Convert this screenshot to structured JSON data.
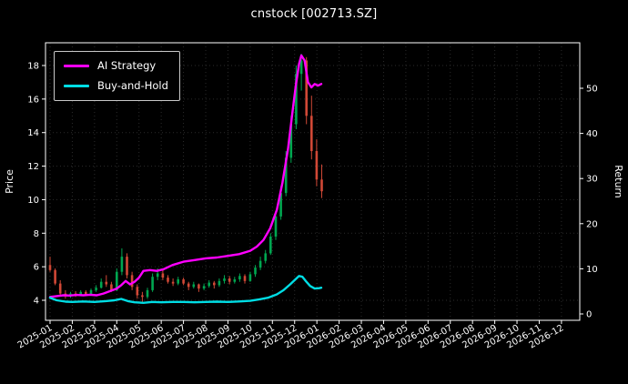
{
  "title": "cnstock [002713.SZ]",
  "colors": {
    "background": "#000000",
    "text": "#ffffff",
    "axis": "#ffffff",
    "grid": "#2b2b2b",
    "ai_strategy": "#ff00ff",
    "buy_and_hold": "#00dde4",
    "candle_up": "#00a650",
    "candle_down": "#d14836"
  },
  "legend": [
    {
      "label": "AI Strategy",
      "color": "#ff00ff"
    },
    {
      "label": "Buy-and-Hold",
      "color": "#00dde4"
    }
  ],
  "chart_data": {
    "type": "line",
    "title": "cnstock [002713.SZ]",
    "xlabel": "",
    "ylabel_left": "Price",
    "ylabel_right": "Return",
    "x_unit": "months since 2025-01",
    "left_ylim": [
      2.8,
      19.3
    ],
    "right_ylim": [
      -1.4,
      60
    ],
    "grid": "dotted",
    "legend_position": "upper-left",
    "left_ticks": [
      4,
      6,
      8,
      10,
      12,
      14,
      16,
      18
    ],
    "right_ticks": [
      0,
      10,
      20,
      30,
      40,
      50
    ],
    "x_tick_labels": [
      "2025-01",
      "2025-02",
      "2025-03",
      "2025-04",
      "2025-05",
      "2025-06",
      "2025-07",
      "2025-08",
      "2025-09",
      "2025-10",
      "2025-11",
      "2025-12",
      "2026-01",
      "2026-02",
      "2026-03",
      "2026-04",
      "2026-05",
      "2026-06",
      "2026-07",
      "2026-08",
      "2026-09",
      "2026-10",
      "2026-11",
      "2026-12"
    ],
    "series": [
      {
        "name": "AI Strategy",
        "axis": "left",
        "color": "#ff00ff",
        "x": [
          0,
          0.3,
          0.6,
          0.9,
          1.2,
          1.5,
          1.8,
          2.1,
          2.4,
          2.7,
          3.0,
          3.2,
          3.4,
          3.6,
          3.8,
          4.0,
          4.2,
          4.5,
          4.8,
          5.1,
          5.5,
          6.0,
          6.5,
          7.0,
          7.5,
          8.0,
          8.5,
          9.0,
          9.3,
          9.6,
          9.9,
          10.2,
          10.45,
          10.7,
          10.9,
          11.05,
          11.2,
          11.3,
          11.45,
          11.6,
          11.75,
          11.9,
          12.05,
          12.2
        ],
        "y": [
          4.2,
          4.25,
          4.3,
          4.28,
          4.32,
          4.3,
          4.33,
          4.3,
          4.4,
          4.55,
          4.7,
          4.9,
          5.15,
          4.95,
          5.1,
          5.35,
          5.75,
          5.8,
          5.75,
          5.85,
          6.1,
          6.3,
          6.4,
          6.5,
          6.55,
          6.65,
          6.75,
          6.95,
          7.2,
          7.6,
          8.3,
          9.4,
          11.0,
          13.0,
          15.2,
          16.8,
          18.1,
          18.6,
          18.3,
          17.0,
          16.7,
          16.9,
          16.8,
          16.9
        ]
      },
      {
        "name": "Buy-and-Hold",
        "axis": "left",
        "color": "#00dde4",
        "x": [
          0,
          0.3,
          0.7,
          1.0,
          1.5,
          2.0,
          2.5,
          2.9,
          3.2,
          3.5,
          3.8,
          4.2,
          4.6,
          5.0,
          5.5,
          6.0,
          6.5,
          7.0,
          7.5,
          8.0,
          8.5,
          9.0,
          9.4,
          9.8,
          10.2,
          10.5,
          10.8,
          11.0,
          11.2,
          11.35,
          11.5,
          11.7,
          11.9,
          12.1,
          12.2
        ],
        "y": [
          4.15,
          4.0,
          3.92,
          3.9,
          3.93,
          3.9,
          3.95,
          4.0,
          4.08,
          3.95,
          3.88,
          3.85,
          3.9,
          3.88,
          3.9,
          3.9,
          3.88,
          3.9,
          3.92,
          3.9,
          3.93,
          3.97,
          4.05,
          4.15,
          4.35,
          4.6,
          4.95,
          5.2,
          5.45,
          5.4,
          5.15,
          4.85,
          4.7,
          4.72,
          4.75
        ]
      }
    ],
    "candles": {
      "name": "Price (OHLC)",
      "axis": "left",
      "up_color": "#00a650",
      "down_color": "#d14836",
      "t": [
        0,
        0.23,
        0.46,
        0.69,
        0.92,
        1.15,
        1.38,
        1.61,
        1.84,
        2.07,
        2.3,
        2.53,
        2.76,
        3.0,
        3.23,
        3.46,
        3.69,
        3.92,
        4.15,
        4.38,
        4.61,
        4.84,
        5.07,
        5.3,
        5.53,
        5.76,
        6.0,
        6.23,
        6.46,
        6.69,
        6.92,
        7.15,
        7.38,
        7.61,
        7.84,
        8.07,
        8.3,
        8.53,
        8.76,
        9.0,
        9.23,
        9.46,
        9.69,
        9.92,
        10.15,
        10.38,
        10.61,
        10.84,
        11.07,
        11.3,
        11.53,
        11.76,
        11.99,
        12.22
      ],
      "open": [
        6.1,
        5.8,
        5.0,
        4.4,
        4.25,
        4.4,
        4.3,
        4.5,
        4.35,
        4.6,
        4.75,
        5.1,
        4.95,
        4.6,
        5.7,
        6.6,
        5.5,
        4.8,
        4.3,
        4.2,
        4.6,
        5.4,
        5.6,
        5.35,
        5.1,
        5.0,
        5.25,
        5.0,
        4.8,
        4.95,
        4.7,
        4.85,
        5.05,
        4.9,
        5.15,
        5.3,
        5.1,
        5.25,
        5.45,
        5.15,
        5.55,
        5.95,
        6.35,
        6.8,
        7.8,
        9.0,
        10.4,
        12.5,
        14.5,
        17.5,
        18.3,
        15.0,
        12.9,
        11.2
      ],
      "high": [
        6.6,
        5.9,
        5.2,
        4.6,
        4.5,
        4.55,
        4.6,
        4.6,
        4.7,
        4.9,
        5.3,
        5.5,
        5.1,
        5.9,
        7.1,
        6.8,
        5.7,
        4.95,
        4.5,
        4.75,
        5.6,
        5.9,
        5.8,
        5.5,
        5.3,
        5.4,
        5.35,
        5.1,
        5.1,
        5.0,
        5.0,
        5.2,
        5.15,
        5.3,
        5.5,
        5.45,
        5.4,
        5.6,
        5.55,
        5.7,
        6.1,
        6.6,
        7.0,
        8.0,
        9.3,
        10.8,
        12.9,
        15.0,
        18.0,
        18.7,
        18.5,
        16.2,
        13.6,
        12.1
      ],
      "low": [
        5.7,
        4.9,
        4.3,
        4.1,
        4.15,
        4.2,
        4.25,
        4.25,
        4.3,
        4.5,
        4.7,
        4.8,
        4.5,
        4.55,
        5.5,
        5.3,
        4.6,
        4.1,
        3.9,
        4.1,
        4.5,
        5.2,
        5.2,
        5.0,
        4.85,
        4.9,
        4.9,
        4.6,
        4.7,
        4.5,
        4.6,
        4.75,
        4.7,
        4.8,
        5.0,
        4.95,
        5.0,
        5.1,
        5.0,
        5.1,
        5.4,
        5.8,
        6.2,
        6.7,
        7.6,
        8.8,
        10.2,
        12.2,
        14.2,
        16.5,
        14.5,
        12.4,
        10.8,
        10.1
      ],
      "close": [
        5.8,
        5.0,
        4.4,
        4.25,
        4.4,
        4.3,
        4.5,
        4.35,
        4.6,
        4.75,
        5.1,
        4.95,
        4.6,
        5.7,
        6.6,
        5.5,
        4.8,
        4.3,
        4.2,
        4.6,
        5.4,
        5.6,
        5.35,
        5.1,
        5.0,
        5.25,
        5.0,
        4.8,
        4.95,
        4.7,
        4.85,
        5.05,
        4.9,
        5.15,
        5.3,
        5.1,
        5.25,
        5.45,
        5.15,
        5.55,
        5.95,
        6.35,
        6.8,
        7.8,
        9.0,
        10.4,
        12.5,
        14.5,
        17.5,
        18.3,
        15.0,
        12.9,
        11.2,
        10.5
      ]
    }
  }
}
